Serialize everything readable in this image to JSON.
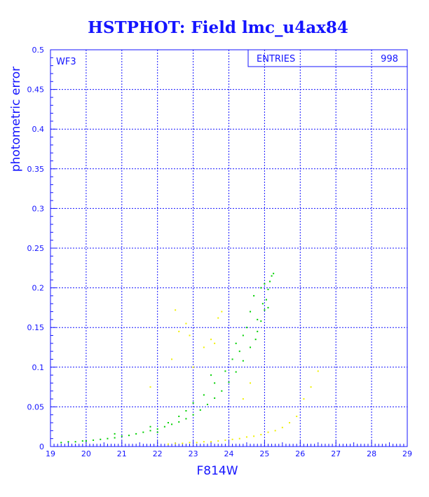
{
  "chart_data": {
    "type": "scatter",
    "title": "HSTPHOT: Field lmc_u4ax84",
    "xlabel": "F814W",
    "ylabel": "photometric error",
    "xlim": [
      19,
      29
    ],
    "ylim": [
      0,
      0.5
    ],
    "x_ticks": [
      "19",
      "20",
      "21",
      "22",
      "23",
      "24",
      "25",
      "26",
      "27",
      "28",
      "29"
    ],
    "y_ticks": [
      "0",
      "0.05",
      "0.1",
      "0.15",
      "0.2",
      "0.25",
      "0.3",
      "0.35",
      "0.4",
      "0.45",
      "0.5"
    ],
    "grid": true,
    "panel_label": "WF3",
    "stats_box": {
      "label": "ENTRIES",
      "value": "998"
    },
    "colors": {
      "axes": "#1414ff",
      "title": "#1414ff",
      "series_main": "#00d000",
      "series_secondary": "#f0f000"
    },
    "series": [
      {
        "color_key": "series_main",
        "points": [
          [
            19.3,
            0.005
          ],
          [
            19.5,
            0.006
          ],
          [
            19.7,
            0.006
          ],
          [
            19.9,
            0.007
          ],
          [
            20.0,
            0.007
          ],
          [
            20.2,
            0.008
          ],
          [
            20.4,
            0.009
          ],
          [
            20.6,
            0.01
          ],
          [
            20.8,
            0.011
          ],
          [
            21.0,
            0.013
          ],
          [
            21.2,
            0.014
          ],
          [
            21.4,
            0.016
          ],
          [
            21.6,
            0.018
          ],
          [
            21.8,
            0.02
          ],
          [
            22.0,
            0.022
          ],
          [
            22.2,
            0.025
          ],
          [
            22.4,
            0.028
          ],
          [
            22.6,
            0.031
          ],
          [
            22.8,
            0.035
          ],
          [
            23.0,
            0.04
          ],
          [
            23.2,
            0.046
          ],
          [
            23.4,
            0.053
          ],
          [
            23.6,
            0.061
          ],
          [
            23.8,
            0.07
          ],
          [
            24.0,
            0.081
          ],
          [
            24.2,
            0.094
          ],
          [
            24.4,
            0.108
          ],
          [
            24.6,
            0.125
          ],
          [
            24.8,
            0.145
          ],
          [
            24.9,
            0.158
          ],
          [
            25.0,
            0.172
          ],
          [
            25.05,
            0.185
          ],
          [
            25.1,
            0.198
          ],
          [
            25.15,
            0.208
          ],
          [
            25.2,
            0.215
          ],
          [
            25.25,
            0.218
          ],
          [
            21.8,
            0.025
          ],
          [
            22.3,
            0.03
          ],
          [
            23.3,
            0.065
          ],
          [
            23.6,
            0.08
          ],
          [
            23.9,
            0.095
          ],
          [
            24.3,
            0.12
          ],
          [
            24.5,
            0.15
          ],
          [
            24.4,
            0.14
          ],
          [
            24.8,
            0.16
          ],
          [
            24.7,
            0.19
          ],
          [
            24.9,
            0.2
          ],
          [
            25.0,
            0.205
          ],
          [
            23.0,
            0.055
          ],
          [
            22.8,
            0.045
          ],
          [
            24.1,
            0.11
          ],
          [
            24.6,
            0.17
          ],
          [
            23.5,
            0.09
          ],
          [
            24.2,
            0.13
          ],
          [
            22.0,
            0.018
          ],
          [
            22.6,
            0.038
          ],
          [
            20.8,
            0.016
          ],
          [
            24.95,
            0.18
          ],
          [
            25.1,
            0.175
          ],
          [
            24.75,
            0.135
          ]
        ]
      },
      {
        "color_key": "series_secondary",
        "points": [
          [
            22.3,
            0.003
          ],
          [
            22.5,
            0.004
          ],
          [
            22.7,
            0.004
          ],
          [
            22.9,
            0.005
          ],
          [
            23.1,
            0.005
          ],
          [
            23.3,
            0.006
          ],
          [
            23.5,
            0.006
          ],
          [
            23.7,
            0.007
          ],
          [
            23.9,
            0.008
          ],
          [
            24.1,
            0.009
          ],
          [
            24.3,
            0.01
          ],
          [
            24.5,
            0.012
          ],
          [
            24.7,
            0.013
          ],
          [
            24.9,
            0.015
          ],
          [
            25.1,
            0.018
          ],
          [
            25.3,
            0.02
          ],
          [
            25.5,
            0.024
          ],
          [
            25.7,
            0.03
          ],
          [
            25.9,
            0.038
          ],
          [
            22.5,
            0.172
          ],
          [
            22.4,
            0.11
          ],
          [
            22.6,
            0.145
          ],
          [
            22.8,
            0.155
          ],
          [
            23.7,
            0.162
          ],
          [
            23.5,
            0.135
          ],
          [
            23.8,
            0.17
          ],
          [
            23.6,
            0.13
          ],
          [
            24.4,
            0.06
          ],
          [
            24.6,
            0.08
          ],
          [
            22.9,
            0.14
          ],
          [
            26.1,
            0.06
          ],
          [
            26.3,
            0.075
          ],
          [
            26.5,
            0.095
          ],
          [
            21.8,
            0.075
          ],
          [
            23.0,
            0.1
          ],
          [
            23.3,
            0.125
          ]
        ]
      }
    ]
  }
}
